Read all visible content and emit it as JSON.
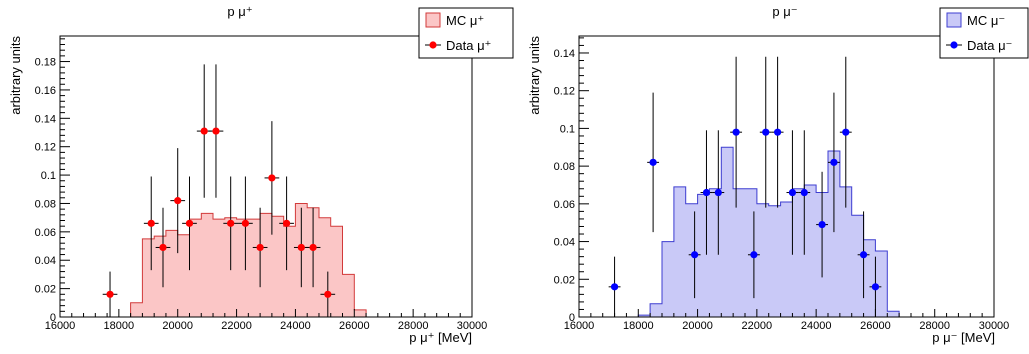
{
  "chart_data": [
    {
      "type": "histogram",
      "title": "p μ⁺",
      "xlabel": "p μ⁺ [MeV]",
      "ylabel": "arbitrary units",
      "xlim": [
        16000,
        30000
      ],
      "ylim": [
        0,
        0.198
      ],
      "xticks": [
        16000,
        18000,
        20000,
        22000,
        24000,
        26000,
        28000,
        30000
      ],
      "yticks": [
        0,
        0.02,
        0.04,
        0.06,
        0.08,
        0.1,
        0.12,
        0.14,
        0.16,
        0.18
      ],
      "ytick_labels": [
        "0",
        "0.02",
        "0.04",
        "0.06",
        "0.08",
        "0.1",
        "0.12",
        "0.14",
        "0.16",
        "0.18"
      ],
      "legend_position": "top-right",
      "colors": {
        "mc_fill": "#fbc6c6",
        "mc_line": "#d23a3a",
        "data": "#ff0000"
      },
      "series": [
        {
          "name": "MC μ⁺",
          "kind": "filled-histogram",
          "bin_edges": [
            18400,
            18800,
            19200,
            19600,
            20000,
            20400,
            20800,
            21200,
            21600,
            22000,
            22400,
            22800,
            23200,
            23600,
            24000,
            24400,
            24800,
            25200,
            25600,
            26000,
            26400
          ],
          "values": [
            0.01,
            0.055,
            0.057,
            0.061,
            0.058,
            0.069,
            0.073,
            0.069,
            0.07,
            0.069,
            0.069,
            0.073,
            0.071,
            0.064,
            0.08,
            0.077,
            0.07,
            0.064,
            0.03,
            0.005
          ]
        },
        {
          "name": "Data μ⁺",
          "kind": "points",
          "x": [
            17700,
            19100,
            19500,
            20000,
            20400,
            20900,
            21300,
            21800,
            22300,
            22800,
            23200,
            23700,
            24200,
            24600,
            25100
          ],
          "y": [
            0.016,
            0.066,
            0.049,
            0.082,
            0.066,
            0.131,
            0.131,
            0.066,
            0.066,
            0.049,
            0.098,
            0.066,
            0.049,
            0.049,
            0.016
          ],
          "yerr": [
            0.016,
            0.033,
            0.028,
            0.037,
            0.033,
            0.047,
            0.047,
            0.033,
            0.033,
            0.028,
            0.04,
            0.033,
            0.028,
            0.028,
            0.016
          ],
          "xerr": 250
        }
      ]
    },
    {
      "type": "histogram",
      "title": "p μ⁻",
      "xlabel": "p μ⁻ [MeV]",
      "ylabel": "arbitrary units",
      "xlim": [
        16000,
        30000
      ],
      "ylim": [
        0,
        0.149
      ],
      "xticks": [
        16000,
        18000,
        20000,
        22000,
        24000,
        26000,
        28000,
        30000
      ],
      "yticks": [
        0,
        0.02,
        0.04,
        0.06,
        0.08,
        0.1,
        0.12,
        0.14
      ],
      "ytick_labels": [
        "0",
        "0.02",
        "0.04",
        "0.06",
        "0.08",
        "0.1",
        "0.12",
        "0.14"
      ],
      "legend_position": "top-right",
      "colors": {
        "mc_fill": "#c9c9f7",
        "mc_line": "#3d3dd0",
        "data": "#0000ff"
      },
      "series": [
        {
          "name": "MC μ⁻",
          "kind": "filled-histogram",
          "bin_edges": [
            18000,
            18400,
            18800,
            19200,
            19600,
            20000,
            20400,
            20800,
            21200,
            21600,
            22000,
            22400,
            22800,
            23200,
            23600,
            24000,
            24400,
            24800,
            25200,
            25600,
            26000,
            26400,
            26800
          ],
          "values": [
            0.001,
            0.007,
            0.04,
            0.069,
            0.06,
            0.065,
            0.068,
            0.09,
            0.068,
            0.068,
            0.06,
            0.059,
            0.061,
            0.068,
            0.07,
            0.066,
            0.088,
            0.069,
            0.054,
            0.041,
            0.035,
            0.003
          ]
        },
        {
          "name": "Data μ⁻",
          "kind": "points",
          "x": [
            17200,
            18500,
            19900,
            20300,
            20700,
            21300,
            21900,
            22300,
            22700,
            23200,
            23600,
            24200,
            24600,
            25000,
            25600,
            26000
          ],
          "y": [
            0.016,
            0.082,
            0.033,
            0.066,
            0.066,
            0.098,
            0.033,
            0.098,
            0.098,
            0.066,
            0.066,
            0.049,
            0.082,
            0.098,
            0.033,
            0.016
          ],
          "yerr": [
            0.016,
            0.037,
            0.023,
            0.033,
            0.033,
            0.04,
            0.023,
            0.04,
            0.04,
            0.033,
            0.033,
            0.028,
            0.037,
            0.04,
            0.023,
            0.016
          ],
          "xerr": 200
        }
      ]
    }
  ]
}
